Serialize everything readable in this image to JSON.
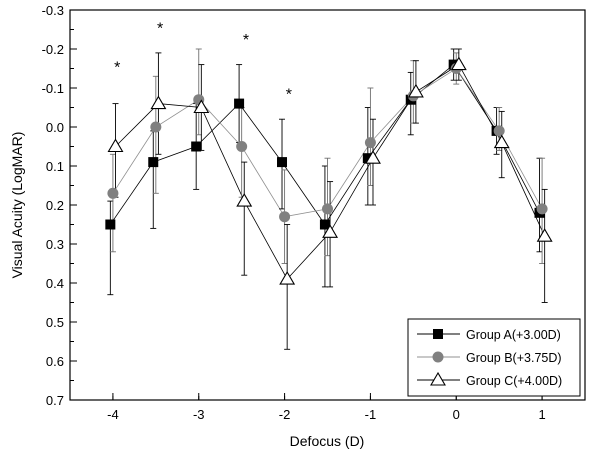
{
  "chart_data": {
    "type": "line",
    "title": "",
    "xlabel": "Defocus (D)",
    "ylabel": "Visual Acuity (LogMAR)",
    "x": [
      -4,
      -3.5,
      -3,
      -2.5,
      -2,
      -1.5,
      -1,
      -0.5,
      0,
      0.5,
      1
    ],
    "xlim": [
      -4.5,
      1.5
    ],
    "ylim": [
      0.7,
      -0.3
    ],
    "y_inverted": true,
    "x_ticks": [
      -4,
      -3,
      -2,
      -1,
      0,
      1
    ],
    "x_tick_labels": [
      "-4",
      "-3",
      "-2",
      "-1",
      "0",
      "1"
    ],
    "y_ticks": [
      -0.3,
      -0.2,
      -0.1,
      0.0,
      0.1,
      0.2,
      0.3,
      0.4,
      0.5,
      0.6,
      0.7
    ],
    "y_tick_labels": [
      "-0.3",
      "-0.2",
      "-0.1",
      "0.0",
      "0.1",
      "0.2",
      "0.3",
      "0.4",
      "0.5",
      "0.6",
      "0.7"
    ],
    "grid": false,
    "legend_position": "bottom-right",
    "series": [
      {
        "name": "Group A(+3.00D)",
        "marker": "square",
        "color": "#000000",
        "x_offset": -0.03,
        "values": [
          0.25,
          0.09,
          0.05,
          -0.06,
          0.09,
          0.25,
          0.08,
          -0.07,
          -0.16,
          0.01,
          0.22
        ],
        "err_low": [
          0.18,
          0.17,
          0.11,
          0.1,
          0.12,
          0.16,
          0.12,
          0.09,
          0.04,
          0.06,
          0.1
        ],
        "err_high": [
          0.06,
          0.08,
          0.11,
          0.1,
          0.11,
          0.15,
          0.13,
          0.07,
          0.04,
          0.06,
          0.14
        ]
      },
      {
        "name": "Group B(+3.75D)",
        "marker": "circle",
        "color": "#808080",
        "x_offset": 0,
        "values": [
          0.17,
          0.0,
          -0.07,
          0.05,
          0.23,
          0.21,
          0.04,
          -0.08,
          -0.15,
          0.01,
          0.21
        ],
        "err_low": [
          0.15,
          0.17,
          0.09,
          0.13,
          0.12,
          0.12,
          0.11,
          0.07,
          0.04,
          0.05,
          0.14
        ],
        "err_high": [
          0.1,
          0.13,
          0.13,
          0.1,
          0.12,
          0.13,
          0.14,
          0.09,
          0.04,
          0.06,
          0.13
        ]
      },
      {
        "name": "Group C(+4.00D)",
        "marker": "triangle",
        "color": "#000000",
        "x_offset": 0.03,
        "values": [
          0.05,
          -0.06,
          -0.05,
          0.19,
          0.39,
          0.27,
          0.08,
          -0.09,
          -0.16,
          0.04,
          0.28
        ],
        "err_low": [
          0.13,
          0.13,
          0.11,
          0.19,
          0.18,
          0.14,
          0.12,
          0.08,
          0.04,
          0.09,
          0.17
        ],
        "err_high": [
          0.11,
          0.13,
          0.11,
          0.1,
          0.14,
          0.13,
          0.1,
          0.08,
          0.04,
          0.08,
          0.12
        ]
      }
    ],
    "annotations": [
      {
        "text": "*",
        "x": -3.95,
        "y": -0.14
      },
      {
        "text": "*",
        "x": -3.45,
        "y": -0.24
      },
      {
        "text": "*",
        "x": -2.45,
        "y": -0.21
      },
      {
        "text": "*",
        "x": -1.95,
        "y": -0.07
      }
    ]
  }
}
